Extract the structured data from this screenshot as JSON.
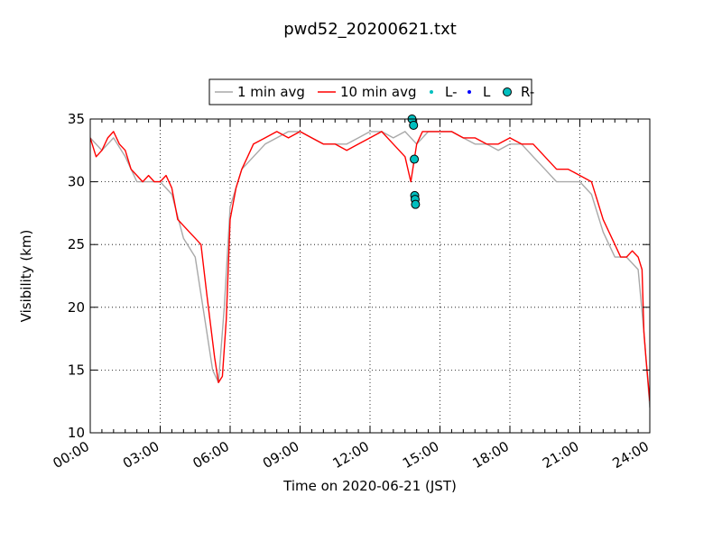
{
  "chart_data": {
    "type": "line",
    "title": "pwd52_20200621.txt",
    "xlabel": "Time on 2020-06-21 (JST)",
    "ylabel": "Visibility (km)",
    "xlim": [
      "00:00",
      "24:00"
    ],
    "ylim": [
      10,
      35
    ],
    "x_ticks": [
      "00:00",
      "03:00",
      "06:00",
      "09:00",
      "12:00",
      "15:00",
      "18:00",
      "21:00",
      "24:00"
    ],
    "y_ticks": [
      10,
      15,
      20,
      25,
      30,
      35
    ],
    "grid": true,
    "legend_position": "top-center",
    "series": [
      {
        "name": "1 min avg",
        "kind": "line",
        "color": "#a9a9a9",
        "x": [
          "00:00",
          "00:30",
          "01:00",
          "01:30",
          "02:00",
          "02:30",
          "03:00",
          "03:30",
          "04:00",
          "04:30",
          "05:00",
          "05:15",
          "05:30",
          "05:45",
          "06:00",
          "06:30",
          "07:00",
          "07:30",
          "08:00",
          "08:30",
          "09:00",
          "09:30",
          "10:00",
          "10:30",
          "11:00",
          "11:30",
          "12:00",
          "12:30",
          "13:00",
          "13:30",
          "14:00",
          "14:30",
          "15:00",
          "15:30",
          "16:00",
          "16:30",
          "17:00",
          "17:30",
          "18:00",
          "18:30",
          "19:00",
          "19:30",
          "20:00",
          "20:30",
          "21:00",
          "21:30",
          "22:00",
          "22:30",
          "23:00",
          "23:30",
          "23:45",
          "24:00"
        ],
        "y": [
          33.5,
          32.5,
          33.5,
          32,
          30,
          30,
          30,
          29,
          25.5,
          24,
          18,
          15,
          14,
          20,
          28,
          31,
          32,
          33,
          33.5,
          34,
          34,
          33.5,
          33,
          33,
          33,
          33.5,
          34,
          34,
          33.5,
          34,
          33,
          34,
          34,
          34,
          33.5,
          33,
          33,
          32.5,
          33,
          33,
          32,
          31,
          30,
          30,
          30,
          29,
          26,
          24,
          24,
          23,
          18,
          12
        ]
      },
      {
        "name": "10 min avg",
        "kind": "line",
        "color": "#ff0000",
        "x": [
          "00:00",
          "00:15",
          "00:30",
          "00:45",
          "01:00",
          "01:15",
          "01:30",
          "01:45",
          "02:00",
          "02:15",
          "02:30",
          "02:45",
          "03:00",
          "03:15",
          "03:30",
          "03:45",
          "04:00",
          "04:15",
          "04:30",
          "04:45",
          "05:00",
          "05:10",
          "05:20",
          "05:30",
          "05:40",
          "05:50",
          "06:00",
          "06:15",
          "06:30",
          "06:45",
          "07:00",
          "07:30",
          "08:00",
          "08:30",
          "09:00",
          "09:30",
          "10:00",
          "10:30",
          "11:00",
          "11:30",
          "12:00",
          "12:30",
          "13:00",
          "13:30",
          "13:45",
          "14:00",
          "14:15",
          "14:30",
          "15:00",
          "15:30",
          "16:00",
          "16:30",
          "17:00",
          "17:30",
          "18:00",
          "18:30",
          "19:00",
          "19:30",
          "20:00",
          "20:30",
          "21:00",
          "21:30",
          "21:45",
          "22:00",
          "22:15",
          "22:30",
          "22:45",
          "23:00",
          "23:15",
          "23:30",
          "23:40",
          "23:45",
          "23:50",
          "24:00"
        ],
        "y": [
          33.5,
          32,
          32.5,
          33.5,
          34,
          33,
          32.5,
          31,
          30.5,
          30,
          30.5,
          30,
          30,
          30.5,
          29.5,
          27,
          26.5,
          26,
          25.5,
          25,
          21,
          18.5,
          16,
          14,
          14.5,
          19,
          27,
          29.5,
          31,
          32,
          33,
          33.5,
          34,
          33.5,
          34,
          33.5,
          33,
          33,
          32.5,
          33,
          33.5,
          34,
          33,
          32,
          30,
          33,
          34,
          34,
          34,
          34,
          33.5,
          33.5,
          33,
          33,
          33.5,
          33,
          33,
          32,
          31,
          31,
          30.5,
          30,
          28.5,
          27,
          26,
          25,
          24,
          24,
          24.5,
          24,
          23,
          18,
          16,
          12.5
        ]
      },
      {
        "name": "L-",
        "kind": "marker",
        "color": "#00bfbf",
        "x": [],
        "y": []
      },
      {
        "name": "L",
        "kind": "marker",
        "color": "#0000ff",
        "x": [],
        "y": []
      },
      {
        "name": "R-",
        "kind": "marker",
        "color": "#00bfbf",
        "x": [
          "13:48",
          "13:52",
          "13:54",
          "13:55",
          "13:56",
          "13:57"
        ],
        "y": [
          35,
          34.5,
          31.8,
          28.9,
          28.6,
          28.2
        ]
      }
    ]
  }
}
